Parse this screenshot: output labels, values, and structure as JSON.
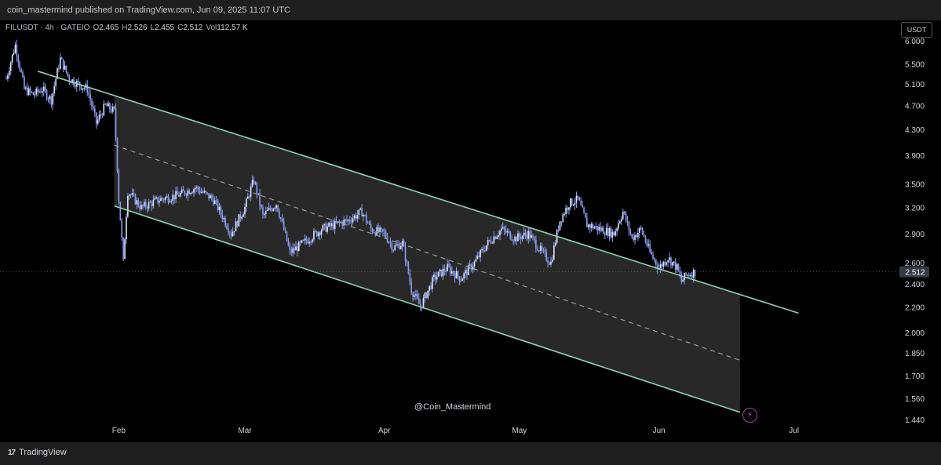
{
  "header": {
    "published_text": "coin_mastermind published on TradingView.com, Jun 09, 2025 11:07 UTC"
  },
  "legend": {
    "symbol": "FILUSDT · 4h · GATEIO",
    "o_label": "O",
    "o_value": "2.465",
    "h_label": "H",
    "h_value": "2.526",
    "l_label": "L",
    "l_value": "2.455",
    "c_label": "C",
    "c_value": "2.512",
    "vol_label": "Vol",
    "vol_value": "112.57 K"
  },
  "currency": "USDT",
  "watermark": "@Coin_Mastermind",
  "footer": {
    "brand": "TradingView",
    "logo": "17"
  },
  "colors": {
    "candle": "#8a9ef0",
    "channel_line": "#8fd3b4",
    "channel_fill": "#2a2a2a",
    "midline": "#9a9a9a",
    "price_badge_bg": "#363a45",
    "axis_text": "#d1d4dc"
  },
  "icons": {
    "bolt": "lightning-icon"
  },
  "chart_data": {
    "type": "candlestick",
    "symbol": "FILUSDT",
    "interval": "4h",
    "exchange": "GATEIO",
    "y_axis": {
      "scale": "log",
      "ticks": [
        "6.000",
        "5.500",
        "5.100",
        "4.700",
        "4.300",
        "3.900",
        "3.500",
        "3.200",
        "2.900",
        "2.600",
        "2.400",
        "2.200",
        "2.000",
        "1.850",
        "1.700",
        "1.560",
        "1.440"
      ],
      "range": [
        1.43,
        6.05
      ]
    },
    "x_axis": {
      "tick_labels": [
        "Feb",
        "Mar",
        "Apr",
        "May",
        "Jun",
        "Jul"
      ],
      "range": [
        "2025-01-07",
        "2025-07-15"
      ]
    },
    "last_price": 2.512,
    "price_path": [
      [
        "2025-01-07",
        5.2
      ],
      [
        "2025-01-09",
        5.9
      ],
      [
        "2025-01-11",
        5.0
      ],
      [
        "2025-01-13",
        4.9
      ],
      [
        "2025-01-15",
        5.0
      ],
      [
        "2025-01-17",
        4.8
      ],
      [
        "2025-01-19",
        5.6
      ],
      [
        "2025-01-21",
        5.2
      ],
      [
        "2025-01-23",
        5.1
      ],
      [
        "2025-01-25",
        5.0
      ],
      [
        "2025-01-27",
        4.4
      ],
      [
        "2025-01-29",
        4.7
      ],
      [
        "2025-01-31",
        4.6
      ],
      [
        "2025-02-01",
        3.3
      ],
      [
        "2025-02-02",
        2.6
      ],
      [
        "2025-02-03",
        3.4
      ],
      [
        "2025-02-06",
        3.2
      ],
      [
        "2025-02-10",
        3.3
      ],
      [
        "2025-02-14",
        3.35
      ],
      [
        "2025-02-18",
        3.45
      ],
      [
        "2025-02-22",
        3.3
      ],
      [
        "2025-02-26",
        2.9
      ],
      [
        "2025-03-01",
        3.2
      ],
      [
        "2025-03-03",
        3.55
      ],
      [
        "2025-03-05",
        3.1
      ],
      [
        "2025-03-08",
        3.25
      ],
      [
        "2025-03-11",
        2.7
      ],
      [
        "2025-03-14",
        2.8
      ],
      [
        "2025-03-18",
        2.95
      ],
      [
        "2025-03-21",
        3.0
      ],
      [
        "2025-03-24",
        3.05
      ],
      [
        "2025-03-27",
        3.15
      ],
      [
        "2025-03-29",
        2.95
      ],
      [
        "2025-04-01",
        2.9
      ],
      [
        "2025-04-03",
        2.75
      ],
      [
        "2025-04-05",
        2.8
      ],
      [
        "2025-04-07",
        2.35
      ],
      [
        "2025-04-09",
        2.2
      ],
      [
        "2025-04-12",
        2.45
      ],
      [
        "2025-04-15",
        2.55
      ],
      [
        "2025-04-18",
        2.45
      ],
      [
        "2025-04-21",
        2.6
      ],
      [
        "2025-04-24",
        2.8
      ],
      [
        "2025-04-27",
        2.95
      ],
      [
        "2025-04-30",
        2.85
      ],
      [
        "2025-05-03",
        2.9
      ],
      [
        "2025-05-06",
        2.7
      ],
      [
        "2025-05-08",
        2.6
      ],
      [
        "2025-05-10",
        3.05
      ],
      [
        "2025-05-12",
        3.25
      ],
      [
        "2025-05-14",
        3.3
      ],
      [
        "2025-05-16",
        3.0
      ],
      [
        "2025-05-19",
        2.95
      ],
      [
        "2025-05-22",
        2.9
      ],
      [
        "2025-05-24",
        3.15
      ],
      [
        "2025-05-26",
        2.85
      ],
      [
        "2025-05-28",
        2.95
      ],
      [
        "2025-05-30",
        2.7
      ],
      [
        "2025-06-01",
        2.55
      ],
      [
        "2025-06-03",
        2.65
      ],
      [
        "2025-06-05",
        2.55
      ],
      [
        "2025-06-06",
        2.42
      ],
      [
        "2025-06-07",
        2.48
      ],
      [
        "2025-06-09",
        2.512
      ]
    ],
    "annotations": {
      "channel_upper": [
        [
          "2025-01-14",
          5.35
        ],
        [
          "2025-07-02",
          2.15
        ]
      ],
      "channel_lower": [
        [
          "2025-01-31",
          3.22
        ],
        [
          "2025-06-19",
          1.48
        ]
      ],
      "channel_mid": [
        [
          "2025-01-31",
          4.05
        ],
        [
          "2025-06-19",
          1.8
        ]
      ],
      "channel_box_end": "2025-06-19"
    }
  }
}
